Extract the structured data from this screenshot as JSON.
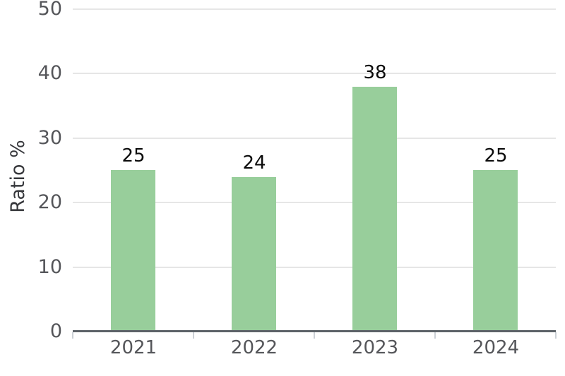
{
  "chart_data": {
    "type": "bar",
    "title": "",
    "categories": [
      "2021",
      "2022",
      "2023",
      "2024"
    ],
    "values": [
      25,
      24,
      38,
      25
    ],
    "value_labels": [
      "25",
      "24",
      "38",
      "25"
    ],
    "xlabel": "",
    "ylabel": "Ratio %",
    "ylim": [
      0,
      50
    ],
    "yticks": [
      0,
      10,
      20,
      30,
      40,
      50
    ],
    "grid": "horizontal-light",
    "legend_position": "none",
    "bar_color": "#98ce9b"
  },
  "colors": {
    "background": "#ffffff",
    "bar": "#98ce9b",
    "gridline": "#e6e6e6",
    "axis_line": "#5c6268",
    "x_tick_mark": "#ccd1d6",
    "tick_label": "#55565a",
    "axis_label": "#36373b",
    "value_label": "#0c0c0c"
  }
}
